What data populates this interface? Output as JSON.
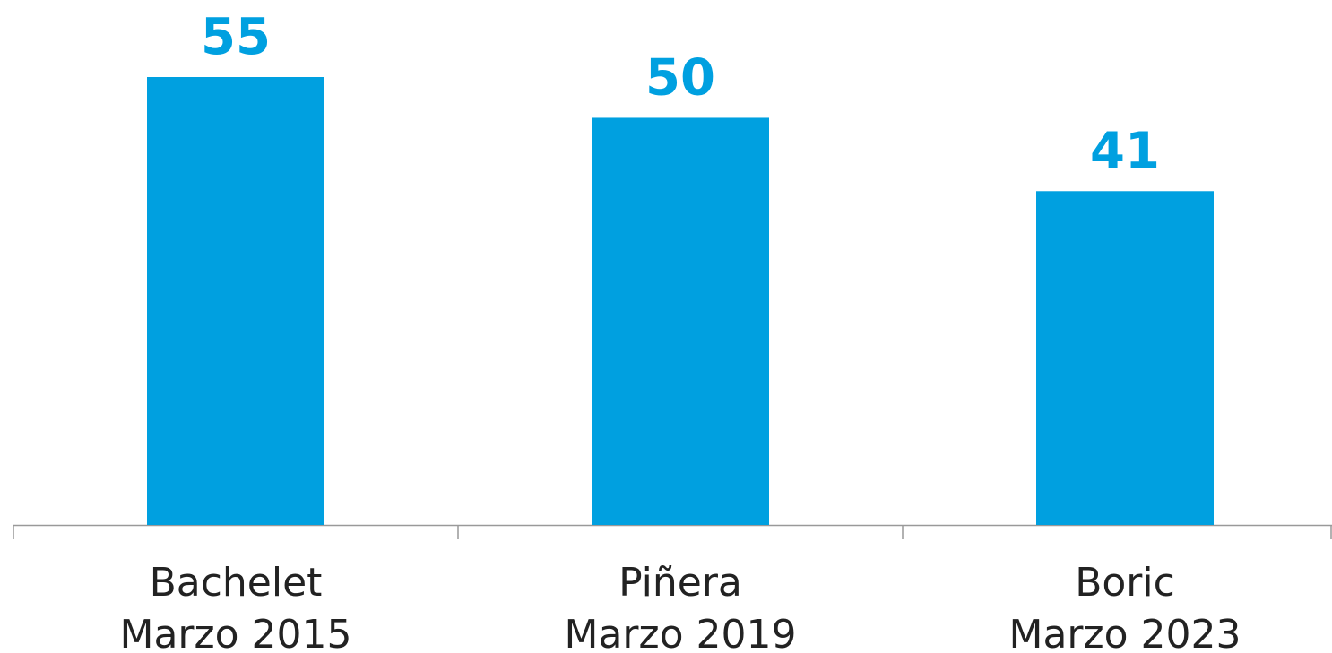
{
  "chart_data": {
    "type": "bar",
    "categories": [
      [
        "Bachelet",
        "Marzo 2015"
      ],
      [
        "Piñera",
        "Marzo 2019"
      ],
      [
        "Boric",
        "Marzo 2023"
      ]
    ],
    "values": [
      55,
      50,
      41
    ],
    "color": "#00a0e0"
  }
}
